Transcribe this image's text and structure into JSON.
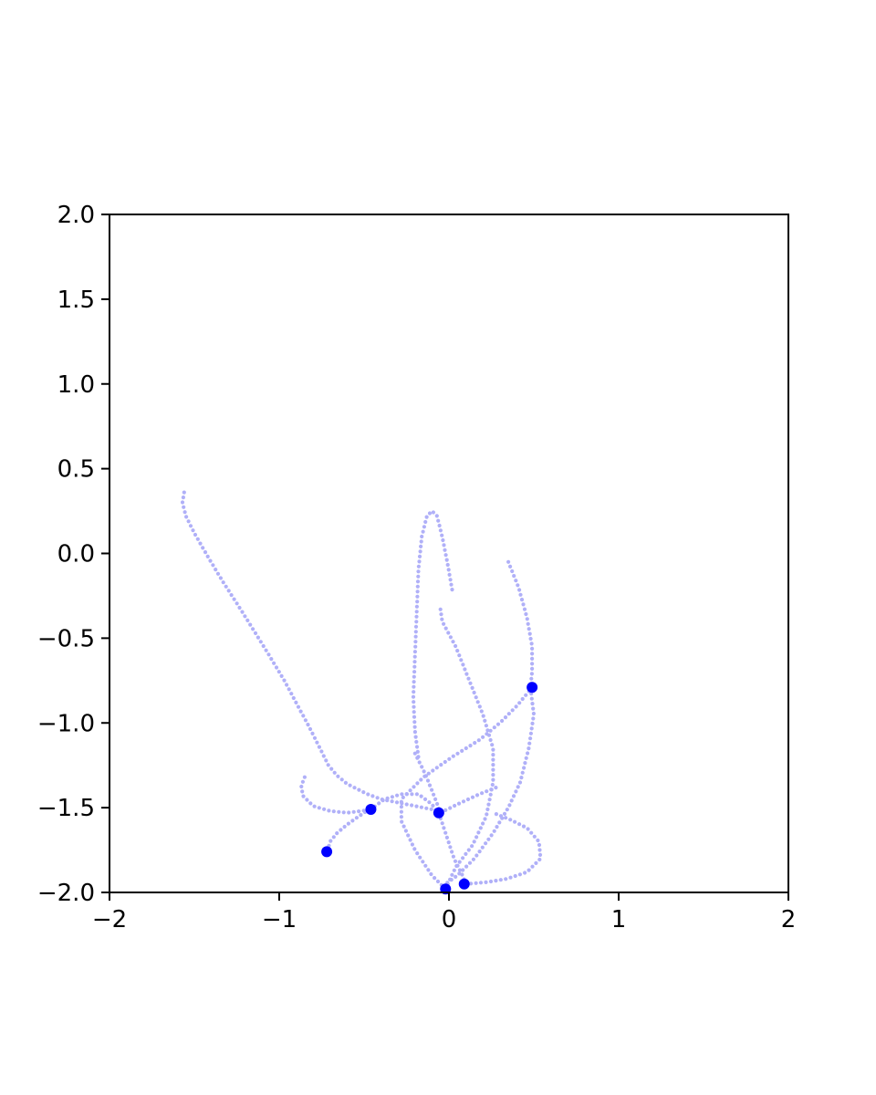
{
  "chart_data": {
    "type": "scatter",
    "title": "",
    "xlabel": "",
    "ylabel": "",
    "xlim": [
      -2,
      2
    ],
    "ylim": [
      -2,
      2
    ],
    "grid": false,
    "legend": "none",
    "x_ticks": [
      -2,
      -1,
      0,
      1,
      2
    ],
    "x_tick_labels": [
      "−2",
      "−1",
      "0",
      "1",
      "2"
    ],
    "y_ticks": [
      2.0,
      1.5,
      1.0,
      0.5,
      0.0,
      -0.5,
      -1.0,
      -1.5,
      -2.0
    ],
    "y_tick_labels": [
      "2.0",
      "1.5",
      "1.0",
      "0.5",
      "0.0",
      "−0.5",
      "−1.0",
      "−1.5",
      "−2.0"
    ],
    "colors": {
      "trail": "#b0b0f8",
      "body": "#0000ff",
      "axis": "#000000"
    },
    "series": [
      {
        "role": "trails",
        "paths": [
          [
            [
              -1.56,
              0.36
            ],
            [
              -1.57,
              0.3
            ],
            [
              -1.55,
              0.22
            ],
            [
              -1.5,
              0.12
            ],
            [
              -1.42,
              -0.02
            ],
            [
              -1.33,
              -0.17
            ],
            [
              -1.24,
              -0.31
            ],
            [
              -1.14,
              -0.47
            ],
            [
              -1.06,
              -0.6
            ],
            [
              -0.97,
              -0.75
            ],
            [
              -0.89,
              -0.9
            ],
            [
              -0.82,
              -1.03
            ],
            [
              -0.76,
              -1.15
            ],
            [
              -0.71,
              -1.25
            ],
            [
              -0.66,
              -1.31
            ],
            [
              -0.6,
              -1.36
            ],
            [
              -0.54,
              -1.39
            ],
            [
              -0.48,
              -1.42
            ],
            [
              -0.4,
              -1.45
            ],
            [
              -0.3,
              -1.47
            ],
            [
              -0.2,
              -1.49
            ],
            [
              -0.1,
              -1.51
            ],
            [
              -0.06,
              -1.52
            ]
          ],
          [
            [
              -0.85,
              -1.32
            ],
            [
              -0.87,
              -1.37
            ],
            [
              -0.86,
              -1.43
            ],
            [
              -0.8,
              -1.49
            ],
            [
              -0.7,
              -1.52
            ],
            [
              -0.6,
              -1.53
            ],
            [
              -0.52,
              -1.52
            ],
            [
              -0.46,
              -1.51
            ]
          ],
          [
            [
              -0.47,
              -1.51
            ],
            [
              -0.53,
              -1.55
            ],
            [
              -0.6,
              -1.6
            ],
            [
              -0.66,
              -1.65
            ],
            [
              -0.7,
              -1.7
            ],
            [
              -0.72,
              -1.77
            ]
          ],
          [
            [
              -0.46,
              -1.51
            ],
            [
              -0.38,
              -1.45
            ],
            [
              -0.28,
              -1.42
            ],
            [
              -0.18,
              -1.42
            ],
            [
              -0.1,
              -1.48
            ],
            [
              -0.05,
              -1.56
            ],
            [
              -0.01,
              -1.68
            ],
            [
              0.03,
              -1.8
            ],
            [
              0.08,
              -1.9
            ],
            [
              0.1,
              -1.95
            ]
          ],
          [
            [
              0.1,
              -1.95
            ],
            [
              0.22,
              -1.94
            ],
            [
              0.34,
              -1.92
            ],
            [
              0.46,
              -1.88
            ],
            [
              0.54,
              -1.8
            ],
            [
              0.53,
              -1.7
            ],
            [
              0.46,
              -1.62
            ],
            [
              0.36,
              -1.57
            ],
            [
              0.26,
              -1.53
            ]
          ],
          [
            [
              -0.18,
              -1.2
            ],
            [
              -0.2,
              -1.05
            ],
            [
              -0.21,
              -0.85
            ],
            [
              -0.2,
              -0.6
            ],
            [
              -0.19,
              -0.35
            ],
            [
              -0.18,
              -0.1
            ],
            [
              -0.16,
              0.1
            ],
            [
              -0.13,
              0.22
            ],
            [
              -0.1,
              0.25
            ],
            [
              -0.07,
              0.22
            ],
            [
              -0.04,
              0.1
            ],
            [
              -0.01,
              -0.05
            ],
            [
              0.02,
              -0.22
            ]
          ],
          [
            [
              -0.05,
              -0.33
            ],
            [
              -0.04,
              -0.4
            ],
            [
              0.04,
              -0.55
            ],
            [
              0.12,
              -0.75
            ],
            [
              0.2,
              -0.95
            ],
            [
              0.26,
              -1.15
            ],
            [
              0.26,
              -1.35
            ],
            [
              0.22,
              -1.55
            ],
            [
              0.14,
              -1.72
            ],
            [
              0.04,
              -1.85
            ],
            [
              -0.02,
              -1.98
            ]
          ],
          [
            [
              0.35,
              -0.05
            ],
            [
              0.41,
              -0.2
            ],
            [
              0.46,
              -0.38
            ],
            [
              0.49,
              -0.55
            ],
            [
              0.49,
              -0.7
            ],
            [
              0.48,
              -0.79
            ],
            [
              0.5,
              -0.95
            ],
            [
              0.47,
              -1.15
            ],
            [
              0.42,
              -1.35
            ],
            [
              0.35,
              -1.5
            ],
            [
              0.26,
              -1.65
            ],
            [
              0.15,
              -1.8
            ],
            [
              0.05,
              -1.9
            ],
            [
              -0.02,
              -1.95
            ]
          ],
          [
            [
              0.49,
              -0.79
            ],
            [
              0.4,
              -0.9
            ],
            [
              0.3,
              -1.0
            ],
            [
              0.18,
              -1.1
            ],
            [
              0.02,
              -1.2
            ],
            [
              -0.15,
              -1.32
            ],
            [
              -0.28,
              -1.45
            ],
            [
              -0.28,
              -1.58
            ],
            [
              -0.2,
              -1.75
            ],
            [
              -0.1,
              -1.9
            ],
            [
              -0.02,
              -1.98
            ]
          ],
          [
            [
              -0.2,
              -1.18
            ],
            [
              -0.14,
              -1.3
            ],
            [
              -0.08,
              -1.45
            ],
            [
              -0.05,
              -1.53
            ],
            [
              0.05,
              -1.48
            ],
            [
              0.18,
              -1.42
            ],
            [
              0.28,
              -1.38
            ]
          ]
        ]
      },
      {
        "role": "bodies",
        "x": [
          0.49,
          -0.46,
          -0.06,
          -0.72,
          0.09,
          -0.02
        ],
        "y": [
          -0.79,
          -1.51,
          -1.53,
          -1.76,
          -1.95,
          -1.98
        ]
      }
    ]
  }
}
